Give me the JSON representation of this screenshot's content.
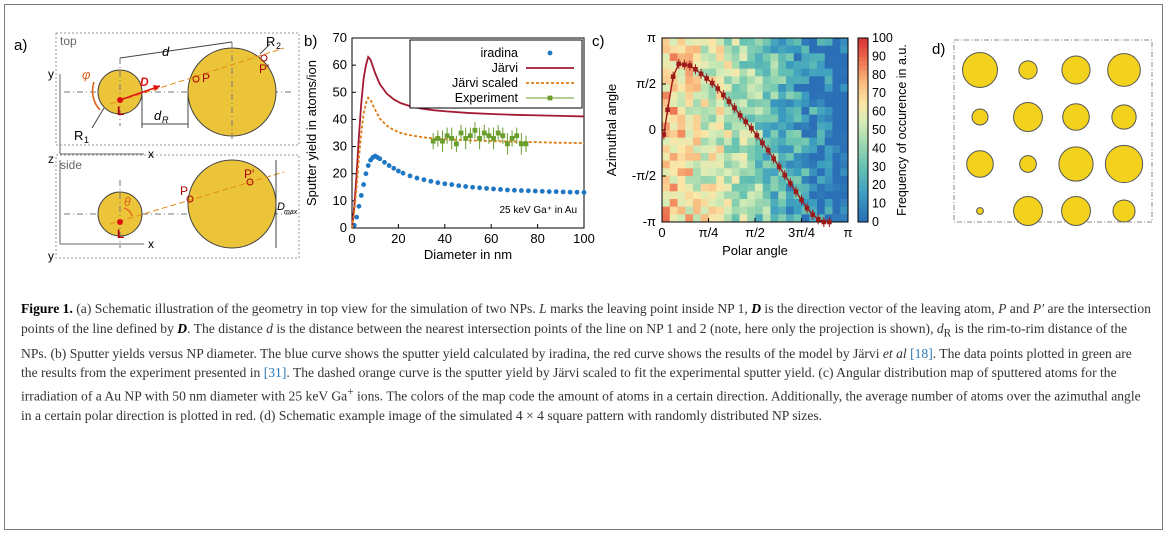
{
  "panel_a": {
    "label": "a)",
    "top_tag": "top",
    "side_tag": "side",
    "axis_x": "x",
    "axis_y": "y",
    "axis_z": "z",
    "d": "d",
    "D": "D",
    "L": "L",
    "P": "P",
    "P_prime": "P'",
    "R1": "R",
    "R1_sub": "1",
    "R2": "R",
    "R2_sub": "2",
    "dR": "d",
    "dR_sub": "R",
    "phi": "φ",
    "theta": "θ",
    "Dmax": "D",
    "Dmax_sub": "max"
  },
  "panel_b": {
    "label": "b)"
  },
  "panel_c": {
    "label": "c)"
  },
  "panel_d": {
    "label": "d)",
    "sizes": [
      [
        0.92,
        0.48,
        0.74,
        0.86
      ],
      [
        0.42,
        0.76,
        0.7,
        0.64
      ],
      [
        0.7,
        0.44,
        0.9,
        0.98
      ],
      [
        0.18,
        0.76,
        0.76,
        0.58
      ]
    ],
    "fill_color": "#f2d21c"
  },
  "chart_data": [
    {
      "type": "line",
      "panel": "b",
      "xlabel": "Diameter in nm",
      "ylabel": "Sputter yield in atoms/ion",
      "xlim": [
        0,
        100
      ],
      "ylim": [
        0,
        70
      ],
      "xticks": [
        0,
        20,
        40,
        60,
        80,
        100
      ],
      "yticks": [
        0,
        10,
        20,
        30,
        40,
        50,
        60,
        70
      ],
      "annotation": "25 keV Ga⁺ in Au",
      "legend_position": "top-right",
      "grid": false,
      "series": [
        {
          "name": "iradina",
          "style": "points",
          "color": "#1f77c4",
          "x": [
            1,
            2,
            3,
            4,
            5,
            6,
            7,
            8,
            9,
            10,
            11,
            12,
            14,
            16,
            18,
            20,
            22,
            25,
            28,
            31,
            34,
            37,
            40,
            43,
            46,
            49,
            52,
            55,
            58,
            61,
            64,
            67,
            70,
            73,
            76,
            79,
            82,
            85,
            88,
            91,
            94,
            97,
            100
          ],
          "y": [
            1,
            4,
            8,
            12,
            16,
            20,
            23,
            25,
            26,
            26.5,
            26,
            25.5,
            24.2,
            23,
            22,
            21,
            20.2,
            19.2,
            18.4,
            17.8,
            17.2,
            16.7,
            16.3,
            16,
            15.6,
            15.3,
            15,
            14.8,
            14.6,
            14.4,
            14.2,
            14,
            13.9,
            13.8,
            13.7,
            13.6,
            13.5,
            13.4,
            13.4,
            13.3,
            13.2,
            13.2,
            13.1
          ]
        },
        {
          "name": "Järvi",
          "style": "line",
          "color": "#a31a32",
          "x": [
            0,
            1,
            2,
            3,
            4,
            5,
            6,
            7,
            8,
            10,
            12,
            15,
            18,
            21,
            25,
            30,
            35,
            40,
            50,
            60,
            70,
            80,
            90,
            100
          ],
          "y": [
            0,
            8,
            20,
            34,
            46,
            55,
            60,
            63,
            62,
            57,
            53,
            49.5,
            47.4,
            46,
            44.9,
            44,
            43.4,
            43,
            42.4,
            42,
            41.7,
            41.5,
            41.3,
            41.1
          ]
        },
        {
          "name": "Järvi scaled",
          "style": "dashed",
          "color": "#e07a12",
          "x": [
            0,
            1,
            2,
            3,
            4,
            5,
            6,
            7,
            8,
            10,
            12,
            15,
            18,
            21,
            25,
            30,
            35,
            40,
            50,
            60,
            70,
            80,
            90,
            100
          ],
          "y": [
            0,
            6,
            15,
            26,
            35,
            42,
            46,
            48,
            47.2,
            43.5,
            40.3,
            37.7,
            36.1,
            35,
            34.2,
            33.5,
            33,
            32.7,
            32.3,
            32,
            31.8,
            31.6,
            31.4,
            31.3
          ]
        },
        {
          "name": "Experiment",
          "style": "points-errorbars",
          "color": "#6a9f2e",
          "x": [
            35,
            37,
            39,
            41,
            43,
            45,
            47,
            49,
            51,
            53,
            55,
            57,
            59,
            61,
            63,
            65,
            67,
            69,
            71,
            73,
            75
          ],
          "y": [
            32,
            33,
            32,
            34,
            33,
            31,
            35,
            33,
            34,
            36,
            33,
            35,
            34,
            33,
            35,
            34,
            31,
            33,
            34,
            31,
            31
          ],
          "err": [
            3,
            3,
            4,
            3,
            4,
            3,
            3,
            4,
            3,
            3,
            4,
            3,
            3,
            4,
            3,
            3,
            4,
            3,
            3,
            4,
            3
          ]
        }
      ]
    },
    {
      "type": "heatmap",
      "panel": "c",
      "xlabel": "Polar angle",
      "ylabel": "Azimuthal angle",
      "colorbar_label": "Frequency of occurence in a.u.",
      "xticks": [
        "0",
        "π/4",
        "π/2",
        "3π/4",
        "π"
      ],
      "yticks": [
        "-π",
        "-π/2",
        "0",
        "π/2",
        "π"
      ],
      "colorbar_ticks": [
        0,
        10,
        20,
        30,
        40,
        50,
        60,
        70,
        80,
        90,
        100
      ],
      "colorbar_range": [
        0,
        100
      ],
      "grid_size": [
        24,
        24
      ],
      "average_curve": {
        "color": "#9b1a1a",
        "x_polar_over_pi": [
          0.01,
          0.03,
          0.06,
          0.09,
          0.12,
          0.15,
          0.18,
          0.21,
          0.24,
          0.27,
          0.3,
          0.33,
          0.36,
          0.39,
          0.42,
          0.45,
          0.48,
          0.51,
          0.54,
          0.57,
          0.6,
          0.63,
          0.66,
          0.69,
          0.72,
          0.75,
          0.78,
          0.81,
          0.84,
          0.87,
          0.9
        ],
        "y_azimuth_over_pi": [
          -0.05,
          0.22,
          0.58,
          0.72,
          0.71,
          0.7,
          0.66,
          0.61,
          0.56,
          0.51,
          0.45,
          0.38,
          0.31,
          0.24,
          0.16,
          0.09,
          0.02,
          -0.06,
          -0.14,
          -0.22,
          -0.31,
          -0.4,
          -0.49,
          -0.58,
          -0.67,
          -0.76,
          -0.85,
          -0.92,
          -0.97,
          -1.0,
          -1.0
        ]
      }
    }
  ],
  "caption": {
    "figure_label": "Figure 1.",
    "part1": " (a) Schematic illustration of the geometry in top view for the simulation of two NPs. ",
    "L": "L",
    "part2": " marks the leaving point inside NP 1, ",
    "D": "D",
    "part3": " is the direction vector of the leaving atom, ",
    "P": "P",
    "and": " and ",
    "Pp": "P′",
    "part4": " are the intersection points of the line defined by ",
    "D2": "D",
    "part5": ". The distance ",
    "d": "d",
    "part6": " is the distance between the nearest intersection points of the line on NP 1 and 2 (note, here only the projection is shown), ",
    "dR": "d",
    "dR_sub": "R",
    "part7": " is the rim-to-rim distance of the NPs. (b) Sputter yields versus NP diameter. The blue curve shows the sputter yield calculated by iradina, the red curve shows the results of the model by Järvi ",
    "etal": "et al",
    "ref1": "[18]",
    "part8": ". The data points plotted in green are the results from the experiment presented in ",
    "ref2": "[31]",
    "part9": ". The dashed orange curve is the sputter yield by Järvi scaled to fit the experimental sputter yield. (c) Angular distribution map of sputtered atoms for the irradiation of a Au NP with 50 nm diameter with 25 keV Ga",
    "ga_sup": "+",
    "part10": " ions. The colors of the map code the amount of atoms in a certain direction. Additionally, the average number of atoms over the azimuthal angle in a certain polar direction is plotted in red. (d) Schematic example image of the simulated 4 × 4 square pattern with randomly distributed NP sizes."
  }
}
